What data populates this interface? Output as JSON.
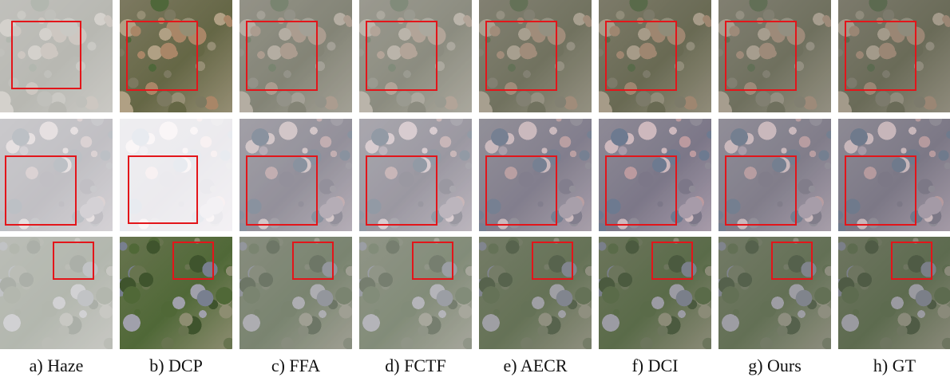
{
  "figure": {
    "columns": [
      {
        "caption": "a) Haze",
        "style": "haze"
      },
      {
        "caption": "b) DCP",
        "style": "dcp"
      },
      {
        "caption": "c) FFA",
        "style": "ffa"
      },
      {
        "caption": "d) FCTF",
        "style": "fctf"
      },
      {
        "caption": "e) AECR",
        "style": "aecr"
      },
      {
        "caption": "f) DCI",
        "style": "dci"
      },
      {
        "caption": "g) Ours",
        "style": "ours"
      },
      {
        "caption": "h) GT",
        "style": "gt"
      }
    ],
    "rows": [
      {
        "scene": "residential-field"
      },
      {
        "scene": "dense-town"
      },
      {
        "scene": "industrial-park"
      }
    ],
    "highlight_color": "#e3151a"
  }
}
